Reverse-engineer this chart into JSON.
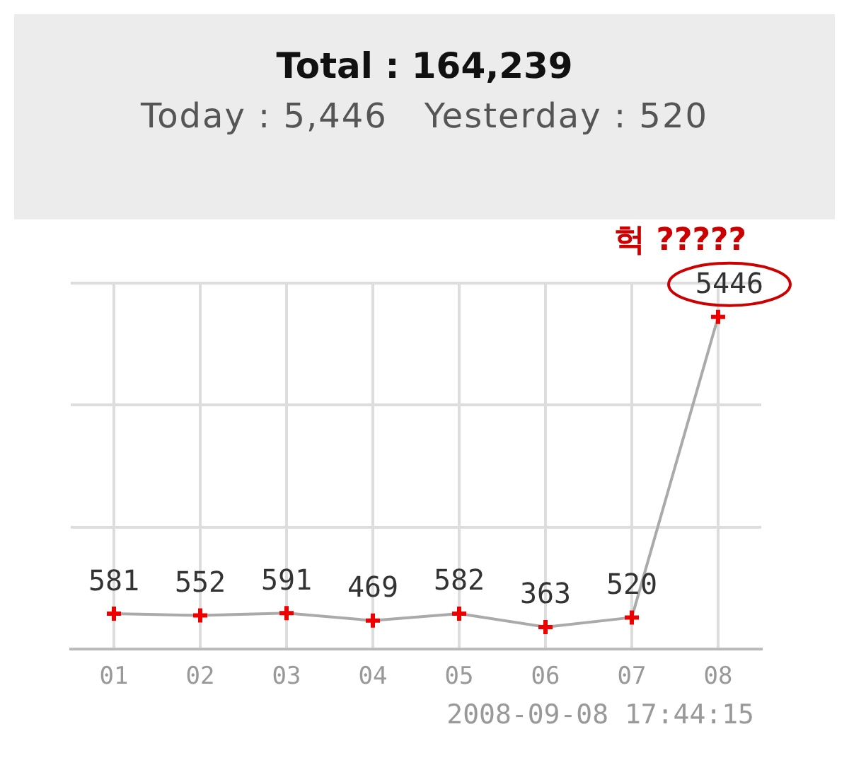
{
  "chart_data": {
    "type": "line",
    "title": "Total : 164,239",
    "subtitle": "Today : 5,446   Yesterday : 520",
    "categories": [
      "01",
      "02",
      "03",
      "04",
      "05",
      "06",
      "07",
      "08"
    ],
    "series": [
      {
        "color": "#aaaaaa",
        "values": [
          581,
          552,
          591,
          469,
          582,
          363,
          520,
          5446
        ]
      }
    ],
    "ylim": [
      0,
      6000
    ],
    "yticks": [
      {
        "value": 0,
        "label": null
      },
      {
        "value": 2000,
        "label": null
      },
      {
        "value": 4000,
        "label": null
      },
      {
        "value": 6000,
        "label": null
      }
    ],
    "tick_labels": "x",
    "grid": true,
    "legend": false,
    "marker": "cross",
    "line_style": "solid",
    "data_labels": true,
    "annotations": [
      {
        "text": "헉 ?????",
        "x": "08",
        "y": 5446
      },
      "2008-09-08 17:44:15"
    ]
  }
}
